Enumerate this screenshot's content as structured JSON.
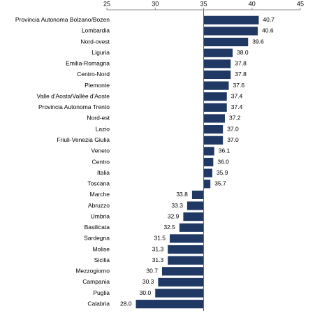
{
  "chart_data": {
    "type": "hbar",
    "categories": [
      "Provincia Autonoma Bolzano/Bozen",
      "Lombardia",
      "Nord-ovest",
      "Liguria",
      "Emilia-Romagna",
      "Centro-Nord",
      "Piemonte",
      "Valle d'Aosta/Vallée d'Aoste",
      "Provincia Autonoma Trento",
      "Nord-est",
      "Lazio",
      "Friuli-Venezia Giulia",
      "Veneto",
      "Centro",
      "Italia",
      "Toscana",
      "Marche",
      "Abruzzo",
      "Umbria",
      "Basilicata",
      "Sardegna",
      "Molise",
      "Sicilia",
      "Mezzogiorno",
      "Campania",
      "Puglia",
      "Calabria"
    ],
    "values": [
      40.7,
      40.6,
      39.6,
      38.0,
      37.8,
      37.8,
      37.6,
      37.4,
      37.4,
      37.2,
      37.0,
      37.0,
      36.1,
      36.0,
      35.9,
      35.7,
      33.8,
      33.3,
      32.9,
      32.5,
      31.5,
      31.3,
      31.3,
      30.7,
      30.3,
      30.0,
      28.0
    ],
    "value_labels": [
      "40.7",
      "40.6",
      "39.6",
      "38.0",
      "37.8",
      "37.8",
      "37.6",
      "37.4",
      "37.4",
      "37.2",
      "37.0",
      "37.0",
      "36.1",
      "36.0",
      "35.9",
      "35.7",
      "33.8",
      "33.3",
      "32.9",
      "32.5",
      "31.5",
      "31.3",
      "31.3",
      "30.7",
      "30.3",
      "30.0",
      "28.0"
    ],
    "color": "#1f3864",
    "bar_base": 35,
    "xlim": [
      25,
      45
    ],
    "xticks": [
      25,
      30,
      35,
      40,
      45
    ],
    "axis_position": "top"
  }
}
